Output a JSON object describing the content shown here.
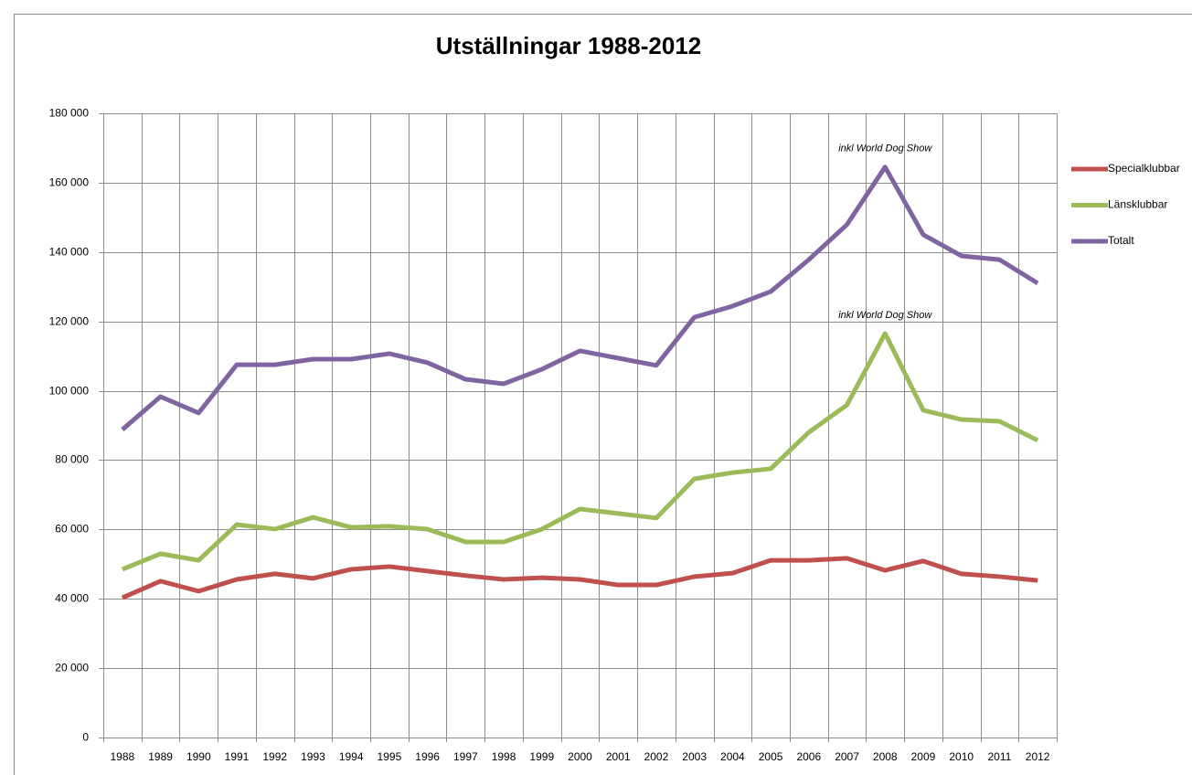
{
  "chart_data": {
    "type": "line",
    "title": "Utställningar 1988-2012",
    "categories": [
      "1988",
      "1989",
      "1990",
      "1991",
      "1992",
      "1993",
      "1994",
      "1995",
      "1996",
      "1997",
      "1998",
      "1999",
      "2000",
      "2001",
      "2002",
      "2003",
      "2004",
      "2005",
      "2006",
      "2007",
      "2008",
      "2009",
      "2010",
      "2011",
      "2012"
    ],
    "series": [
      {
        "name": "Specialklubbar",
        "color": "#c0504d",
        "values": [
          40300,
          45100,
          42200,
          45600,
          47200,
          45900,
          48500,
          49300,
          48000,
          46700,
          45600,
          46100,
          45600,
          44000,
          44000,
          46400,
          47400,
          51100,
          51100,
          51700,
          48200,
          50900,
          47200,
          46400,
          45300
        ]
      },
      {
        "name": "Länsklubbar",
        "color": "#9bbb59",
        "values": [
          48500,
          53000,
          51100,
          61400,
          60100,
          63500,
          60600,
          60900,
          60100,
          56400,
          56400,
          60100,
          65900,
          64600,
          63300,
          74600,
          76400,
          77500,
          88000,
          95900,
          116500,
          94400,
          91700,
          91200,
          85700
        ]
      },
      {
        "name": "Totalt",
        "color": "#8064a2",
        "values": [
          88800,
          98300,
          93600,
          107500,
          107500,
          109100,
          109100,
          110700,
          108100,
          103300,
          102000,
          106200,
          111500,
          109400,
          107300,
          121200,
          124400,
          128600,
          137800,
          147900,
          164500,
          145000,
          138900,
          137800,
          131000
        ]
      }
    ],
    "ylim": [
      0,
      180000
    ],
    "yticks": [
      0,
      {
        "value": 20000,
        "label": "20 000"
      },
      {
        "value": 40000,
        "label": "40 000"
      },
      {
        "value": 60000,
        "label": "60 000"
      },
      {
        "value": 80000,
        "label": "80 000"
      },
      {
        "value": 100000,
        "label": "100 000"
      },
      {
        "value": 120000,
        "label": "120 000"
      },
      {
        "value": 140000,
        "label": "140 000"
      },
      {
        "value": 160000,
        "label": "160 000"
      },
      {
        "value": 180000,
        "label": "180 000"
      }
    ],
    "grid": true,
    "legend": "right",
    "annotations": [
      "inkl World Dog Show",
      "inkl World Dog Show"
    ]
  }
}
